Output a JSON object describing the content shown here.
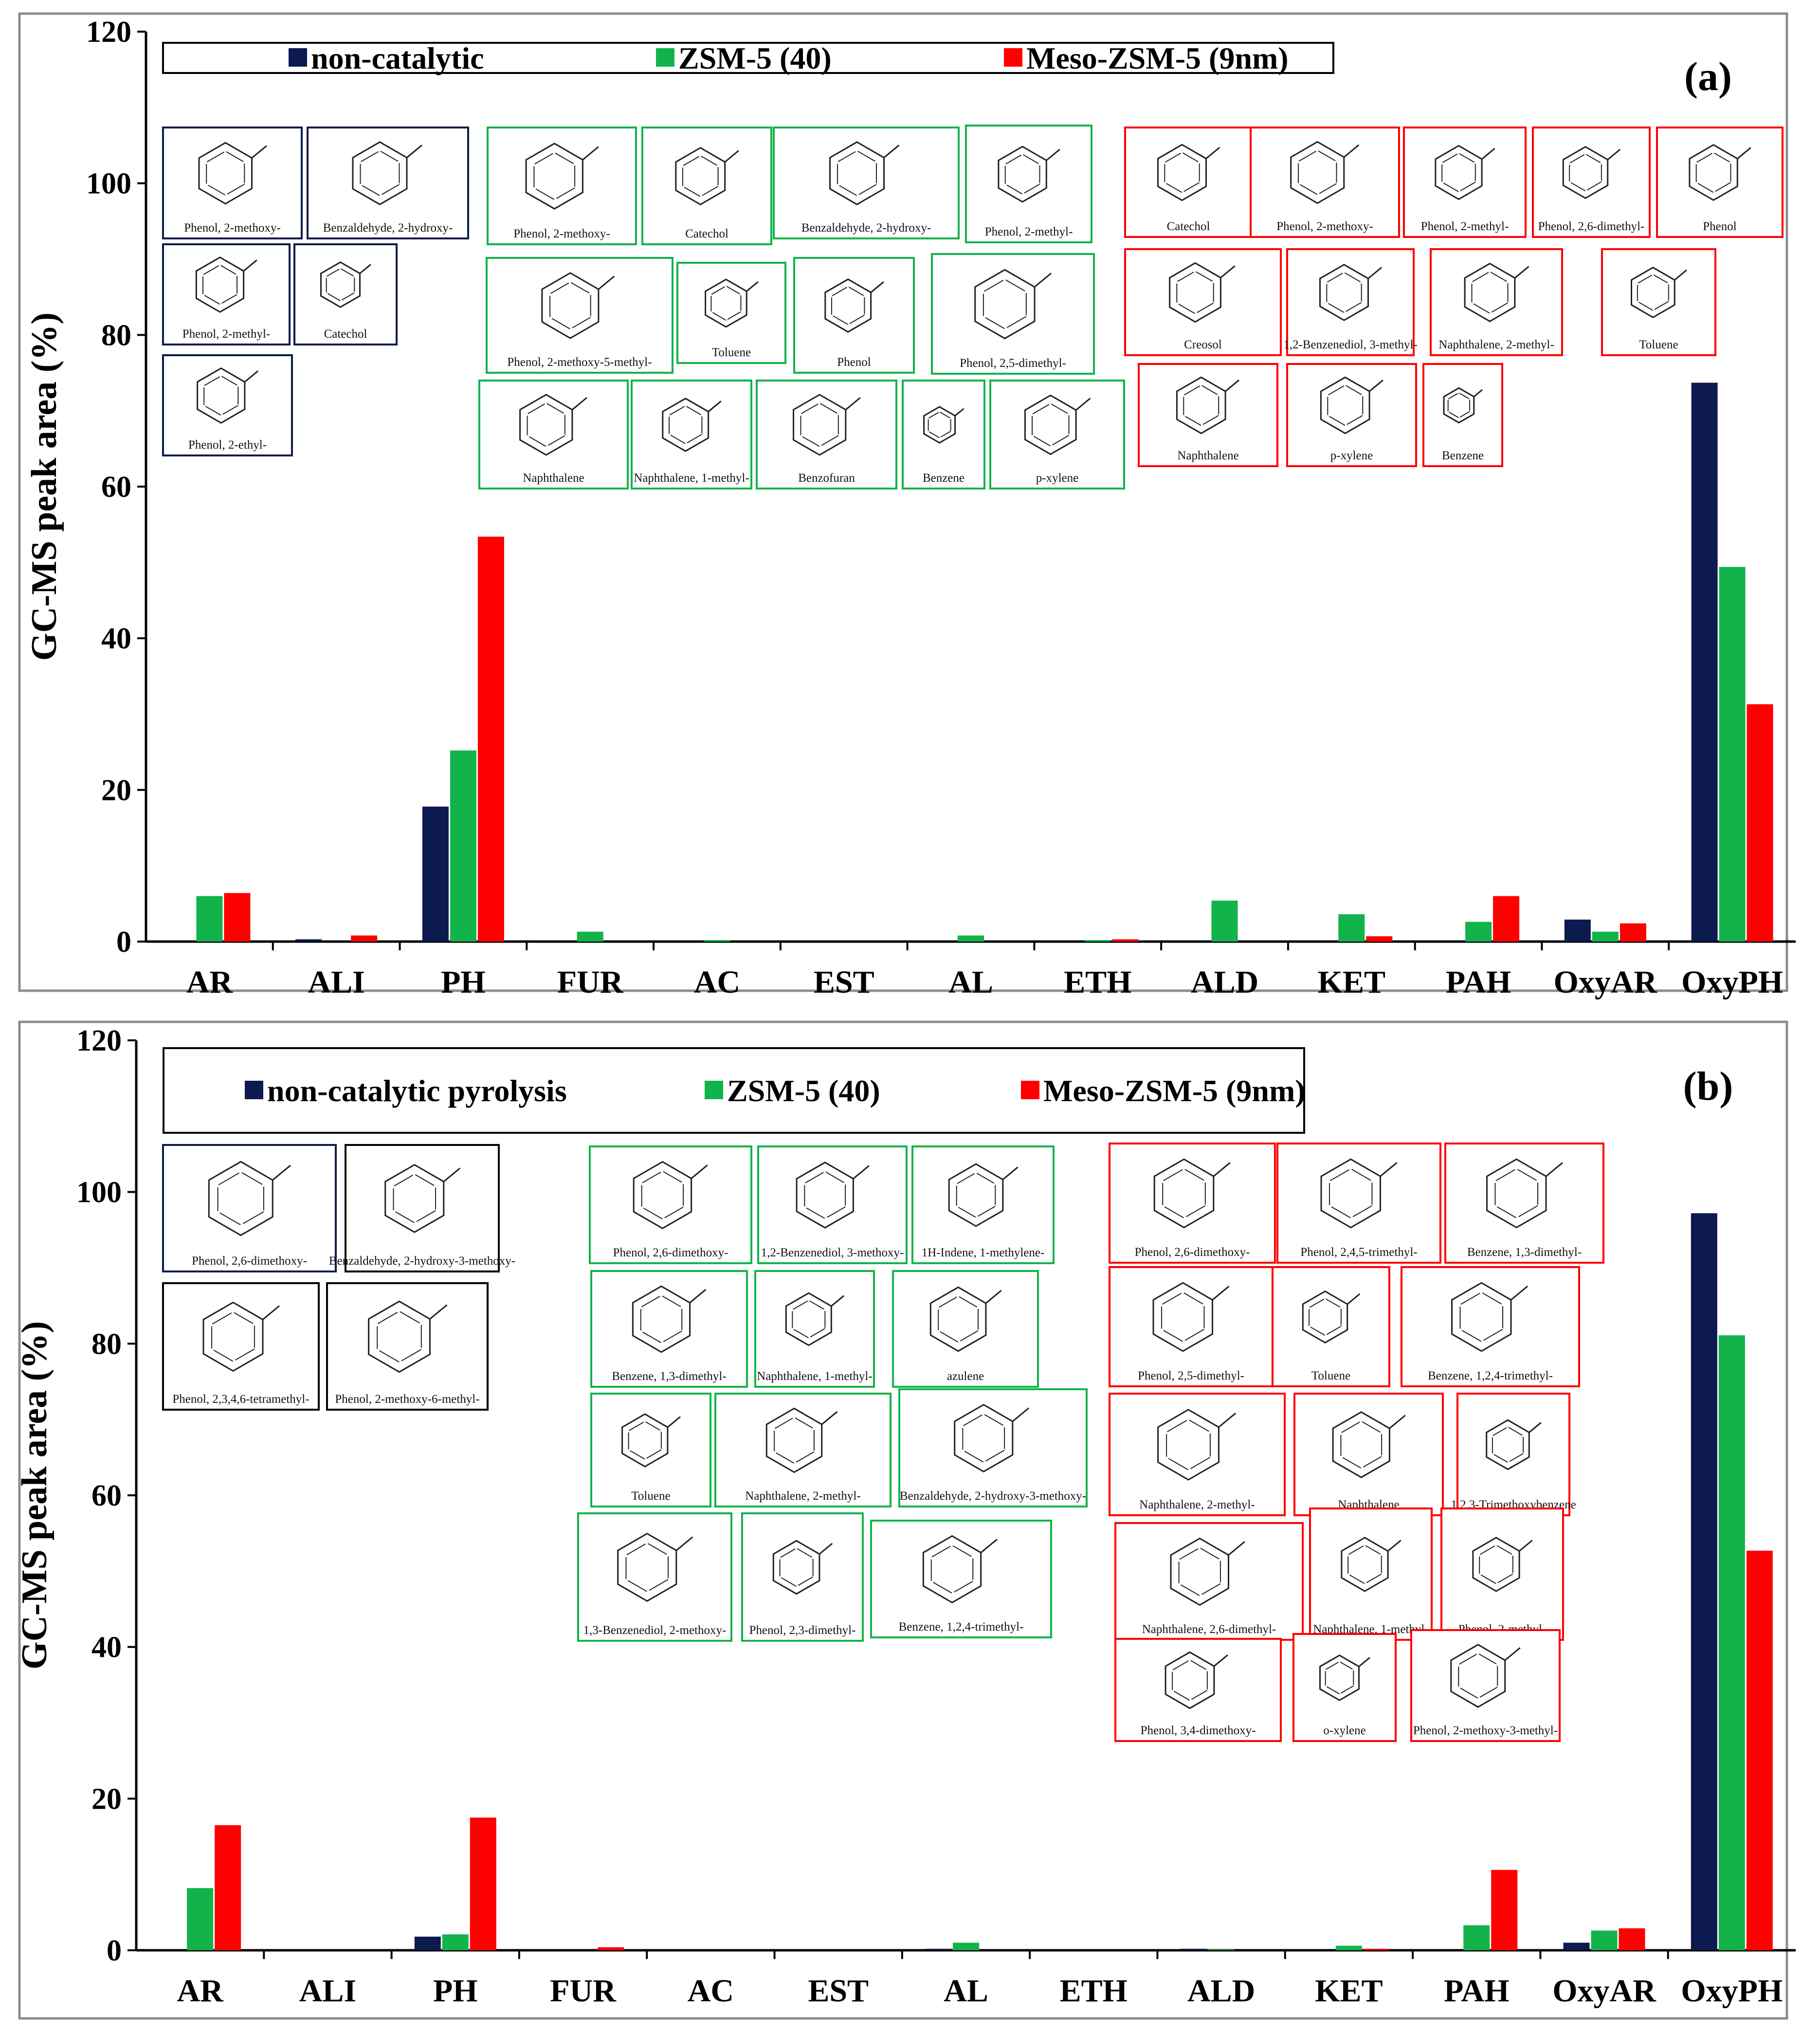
{
  "colors": {
    "non_catalytic": "#0d1a4f",
    "zsm5": "#12b34a",
    "meso_zsm5": "#ff0000",
    "frame": "#8c8c8c",
    "axis": "#000000"
  },
  "chart_data": [
    {
      "type": "bar",
      "panel": "(a)",
      "ylabel": "GC-MS peak area (%)",
      "xlabel": "",
      "ylim": [
        0,
        120
      ],
      "yticks": [
        "0",
        "20",
        "40",
        "60",
        "80",
        "100",
        "120"
      ],
      "categories": [
        "AR",
        "ALI",
        "PH",
        "FUR",
        "AC",
        "EST",
        "AL",
        "ETH",
        "ALD",
        "KET",
        "PAH",
        "OxyAR",
        "OxyPH"
      ],
      "series": [
        {
          "name": "non-catalytic",
          "color_key": "non_catalytic",
          "values": [
            0,
            0.3,
            17.8,
            0,
            0,
            0,
            0,
            0,
            0,
            0,
            0,
            2.9,
            73.7
          ]
        },
        {
          "name": "ZSM-5 (40)",
          "color_key": "zsm5",
          "values": [
            6.0,
            0,
            25.2,
            1.3,
            0.2,
            0,
            0.8,
            0.2,
            5.4,
            3.6,
            2.6,
            1.3,
            49.4
          ]
        },
        {
          "name": "Meso-ZSM-5 (9nm)",
          "color_key": "meso_zsm5",
          "values": [
            6.4,
            0.8,
            53.4,
            0,
            0,
            0,
            0,
            0.3,
            0,
            0.7,
            6.0,
            2.4,
            31.3
          ]
        }
      ],
      "structure_groups": [
        {
          "color_key": "non_catalytic",
          "labels": [
            "Phenol, 2-methoxy-",
            "Benzaldehyde, 2-hydroxy-",
            "Phenol, 2-methyl-",
            "Catechol",
            "Phenol, 2-ethyl-"
          ]
        },
        {
          "color_key": "zsm5",
          "labels": [
            "Phenol, 2-methoxy-",
            "Catechol",
            "Benzaldehyde, 2-hydroxy-",
            "Phenol, 2-methyl-",
            "Phenol, 2-methoxy-5-methyl-",
            "Toluene",
            "Phenol",
            "Phenol, 2,5-dimethyl-",
            "Naphthalene",
            "Naphthalene, 1-methyl-",
            "Benzofuran",
            "Benzene",
            "p-xylene"
          ]
        },
        {
          "color_key": "meso_zsm5",
          "labels": [
            "Catechol",
            "Phenol, 2-methoxy-",
            "Phenol, 2-methyl-",
            "Phenol, 2,6-dimethyl-",
            "Phenol",
            "Creosol",
            "1,2-Benzenediol, 3-methyl-",
            "Naphthalene, 2-methyl-",
            "Toluene",
            "Naphthalene",
            "p-xylene",
            "Benzene"
          ]
        }
      ]
    },
    {
      "type": "bar",
      "panel": "(b)",
      "ylabel": "GC-MS peak area (%)",
      "xlabel": "",
      "ylim": [
        0,
        120
      ],
      "yticks": [
        "0",
        "20",
        "40",
        "60",
        "80",
        "100",
        "120"
      ],
      "categories": [
        "AR",
        "ALI",
        "PH",
        "FUR",
        "AC",
        "EST",
        "AL",
        "ETH",
        "ALD",
        "KET",
        "PAH",
        "OxyAR",
        "OxyPH"
      ],
      "series": [
        {
          "name": "non-catalytic pyrolysis",
          "color_key": "non_catalytic",
          "values": [
            0,
            0,
            1.8,
            0,
            0,
            0,
            0.2,
            0,
            0.2,
            0,
            0,
            1.0,
            97.2
          ]
        },
        {
          "name": "ZSM-5 (40)",
          "color_key": "zsm5",
          "values": [
            8.2,
            0,
            2.1,
            0,
            0,
            0,
            1.0,
            0,
            0.1,
            0.6,
            3.3,
            2.6,
            81.1
          ]
        },
        {
          "name": "Meso-ZSM-5 (9nm)",
          "color_key": "meso_zsm5",
          "values": [
            16.5,
            0,
            17.5,
            0.4,
            0,
            0,
            0,
            0,
            0,
            0.2,
            10.6,
            2.9,
            52.7
          ]
        }
      ],
      "structure_groups": [
        {
          "color_key": "non_catalytic",
          "labels": [
            "Phenol, 2,6-dimethoxy-"
          ]
        },
        {
          "color_key": "axis",
          "labels": [
            "Benzaldehyde, 2-hydroxy-3-methoxy-",
            "Phenol, 2,3,4,6-tetramethyl-",
            "Phenol, 2-methoxy-6-methyl-"
          ]
        },
        {
          "color_key": "zsm5",
          "labels": [
            "Phenol, 2,6-dimethoxy-",
            "1,2-Benzenediol, 3-methoxy-",
            "1H-Indene, 1-methylene-",
            "Benzene, 1,3-dimethyl-",
            "Naphthalene, 1-methyl-",
            "azulene",
            "Toluene",
            "Naphthalene, 2-methyl-",
            "Benzaldehyde, 2-hydroxy-3-methoxy-",
            "1,3-Benzenediol, 2-methoxy-",
            "Phenol, 2,3-dimethyl-",
            "Benzene, 1,2,4-trimethyl-"
          ]
        },
        {
          "color_key": "meso_zsm5",
          "labels": [
            "Phenol, 2,6-dimethoxy-",
            "Phenol, 2,4,5-trimethyl-",
            "Benzene, 1,3-dimethyl-",
            "Phenol, 2,5-dimethyl-",
            "Toluene",
            "Benzene, 1,2,4-trimethyl-",
            "Naphthalene, 2-methyl-",
            "Naphthalene",
            "1,2,3-Trimethoxybenzene",
            "Naphthalene, 2,6-dimethyl-",
            "Naphthalene, 1-methyl-",
            "Phenol, 2-methyl-",
            "Phenol, 3,4-dimethoxy-",
            "o-xylene",
            "Phenol, 2-methoxy-3-methyl-"
          ]
        }
      ]
    }
  ]
}
